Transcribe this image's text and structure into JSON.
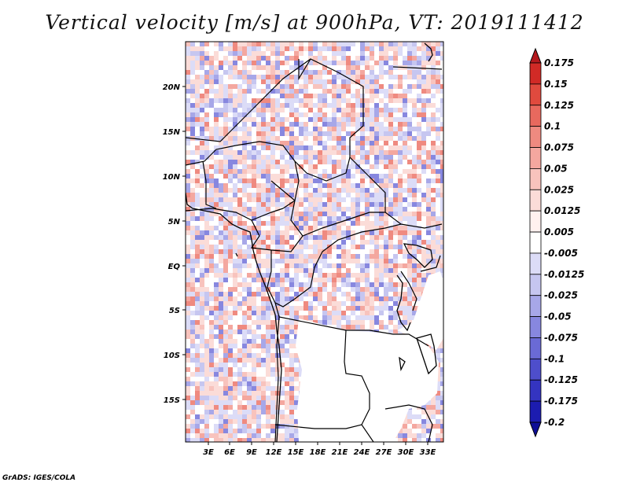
{
  "title": "Vertical velocity [m/s] at 900hPa, VT: 2019111412",
  "footer": "GrADS: IGES/COLA",
  "map": {
    "lat_labels": [
      "20N",
      "15N",
      "10N",
      "5N",
      "EQ",
      "5S",
      "10S",
      "15S"
    ],
    "lon_labels": [
      "3E",
      "6E",
      "9E",
      "12E",
      "15E",
      "18E",
      "21E",
      "24E",
      "27E",
      "30E",
      "33E"
    ]
  },
  "colorbar": {
    "labels": [
      "0.175",
      "0.15",
      "0.125",
      "0.1",
      "0.075",
      "0.05",
      "0.025",
      "0.0125",
      "0.005",
      "-0.005",
      "-0.0125",
      "-0.025",
      "-0.05",
      "-0.075",
      "-0.1",
      "-0.125",
      "-0.175",
      "-0.2"
    ],
    "colors": [
      "#b5191e",
      "#d12a26",
      "#e04a3e",
      "#e8695e",
      "#ef8a80",
      "#f4a79f",
      "#f8c3bd",
      "#fbdcd8",
      "#fff1ef",
      "#ffffff",
      "#dcdcf7",
      "#c6c6f0",
      "#a7a7e8",
      "#8787df",
      "#6a6ad5",
      "#4e4ecb",
      "#3434c0",
      "#1c1cb0",
      "#0e0e96"
    ]
  }
}
